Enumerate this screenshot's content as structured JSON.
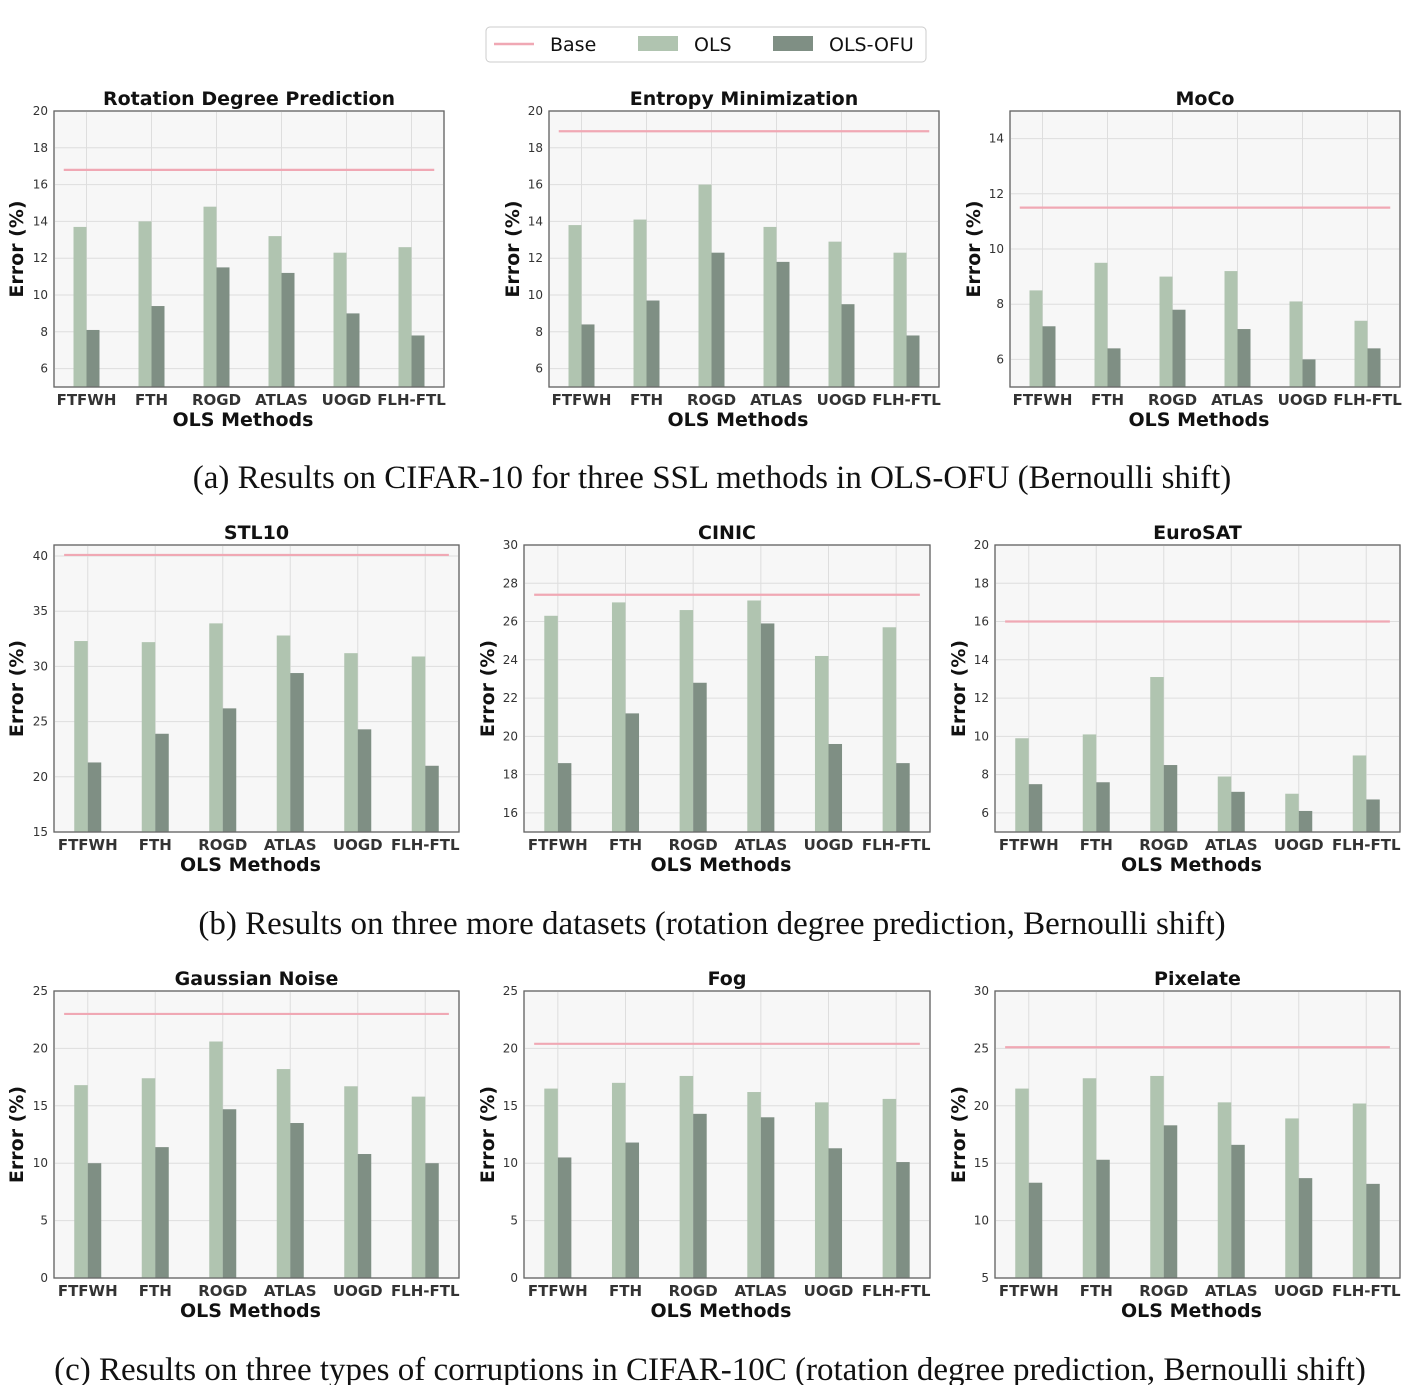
{
  "legend": [
    {
      "name": "Base",
      "color": "#f0a8b4",
      "kind": "line"
    },
    {
      "name": "OLS",
      "color": "#b0c4b0",
      "kind": "bar"
    },
    {
      "name": "OLS-OFU",
      "color": "#7f8f84",
      "kind": "bar"
    }
  ],
  "captions": [
    "(a) Results on CIFAR-10 for three SSL methods in OLS-OFU (Bernoulli shift)",
    "(b) Results on three more datasets (rotation degree prediction, Bernoulli shift)",
    "(c) Results on three types of corruptions in CIFAR-10C (rotation degree prediction, Bernoulli shift)"
  ],
  "chart_data": [
    {
      "type": "bar",
      "title": "Rotation Degree Prediction",
      "xlabel": "OLS Methods",
      "ylabel": "Error (%)",
      "categories": [
        "FTFWH",
        "FTH",
        "ROGD",
        "ATLAS",
        "UOGD",
        "FLH-FTL"
      ],
      "ylim": [
        5,
        20
      ],
      "yticks": [
        6,
        8,
        10,
        12,
        14,
        16,
        18,
        20
      ],
      "base": 16.8,
      "series": [
        {
          "name": "OLS",
          "values": [
            13.7,
            14.0,
            14.8,
            13.2,
            12.3,
            12.6
          ]
        },
        {
          "name": "OLS-OFU",
          "values": [
            8.1,
            9.4,
            11.5,
            11.2,
            9.0,
            7.8
          ]
        }
      ],
      "grid": true
    },
    {
      "type": "bar",
      "title": "Entropy Minimization",
      "xlabel": "OLS Methods",
      "ylabel": "Error (%)",
      "categories": [
        "FTFWH",
        "FTH",
        "ROGD",
        "ATLAS",
        "UOGD",
        "FLH-FTL"
      ],
      "ylim": [
        5,
        20
      ],
      "yticks": [
        6,
        8,
        10,
        12,
        14,
        16,
        18,
        20
      ],
      "base": 18.9,
      "series": [
        {
          "name": "OLS",
          "values": [
            13.8,
            14.1,
            16.0,
            13.7,
            12.9,
            12.3
          ]
        },
        {
          "name": "OLS-OFU",
          "values": [
            8.4,
            9.7,
            12.3,
            11.8,
            9.5,
            7.8
          ]
        }
      ],
      "grid": true
    },
    {
      "type": "bar",
      "title": "MoCo",
      "xlabel": "OLS Methods",
      "ylabel": "Error (%)",
      "categories": [
        "FTFWH",
        "FTH",
        "ROGD",
        "ATLAS",
        "UOGD",
        "FLH-FTL"
      ],
      "ylim": [
        5,
        15
      ],
      "yticks": [
        6,
        8,
        10,
        12,
        14
      ],
      "base": 11.5,
      "series": [
        {
          "name": "OLS",
          "values": [
            8.5,
            9.5,
            9.0,
            9.2,
            8.1,
            7.4
          ]
        },
        {
          "name": "OLS-OFU",
          "values": [
            7.2,
            6.4,
            7.8,
            7.1,
            6.0,
            6.4
          ]
        }
      ],
      "grid": true
    },
    {
      "type": "bar",
      "title": "STL10",
      "xlabel": "OLS Methods",
      "ylabel": "Error (%)",
      "categories": [
        "FTFWH",
        "FTH",
        "ROGD",
        "ATLAS",
        "UOGD",
        "FLH-FTL"
      ],
      "ylim": [
        15,
        41
      ],
      "yticks": [
        15,
        20,
        25,
        30,
        35,
        40
      ],
      "base": 40.1,
      "series": [
        {
          "name": "OLS",
          "values": [
            32.3,
            32.2,
            33.9,
            32.8,
            31.2,
            30.9
          ]
        },
        {
          "name": "OLS-OFU",
          "values": [
            21.3,
            23.9,
            26.2,
            29.4,
            24.3,
            21.0
          ]
        }
      ],
      "grid": true
    },
    {
      "type": "bar",
      "title": "CINIC",
      "xlabel": "OLS Methods",
      "ylabel": "Error (%)",
      "categories": [
        "FTFWH",
        "FTH",
        "ROGD",
        "ATLAS",
        "UOGD",
        "FLH-FTL"
      ],
      "ylim": [
        15,
        30
      ],
      "yticks": [
        16,
        18,
        20,
        22,
        24,
        26,
        28,
        30
      ],
      "base": 27.4,
      "series": [
        {
          "name": "OLS",
          "values": [
            26.3,
            27.0,
            26.6,
            27.1,
            24.2,
            25.7
          ]
        },
        {
          "name": "OLS-OFU",
          "values": [
            18.6,
            21.2,
            22.8,
            25.9,
            19.6,
            18.6
          ]
        }
      ],
      "grid": true
    },
    {
      "type": "bar",
      "title": "EuroSAT",
      "xlabel": "OLS Methods",
      "ylabel": "Error (%)",
      "categories": [
        "FTFWH",
        "FTH",
        "ROGD",
        "ATLAS",
        "UOGD",
        "FLH-FTL"
      ],
      "ylim": [
        5,
        20
      ],
      "yticks": [
        6,
        8,
        10,
        12,
        14,
        16,
        18,
        20
      ],
      "base": 16.0,
      "series": [
        {
          "name": "OLS",
          "values": [
            9.9,
            10.1,
            13.1,
            7.9,
            7.0,
            9.0
          ]
        },
        {
          "name": "OLS-OFU",
          "values": [
            7.5,
            7.6,
            8.5,
            7.1,
            6.1,
            6.7
          ]
        }
      ],
      "grid": true
    },
    {
      "type": "bar",
      "title": "Gaussian Noise",
      "xlabel": "OLS Methods",
      "ylabel": "Error (%)",
      "categories": [
        "FTFWH",
        "FTH",
        "ROGD",
        "ATLAS",
        "UOGD",
        "FLH-FTL"
      ],
      "ylim": [
        0,
        25
      ],
      "yticks": [
        0,
        5,
        10,
        15,
        20,
        25
      ],
      "base": 23.0,
      "series": [
        {
          "name": "OLS",
          "values": [
            16.8,
            17.4,
            20.6,
            18.2,
            16.7,
            15.8
          ]
        },
        {
          "name": "OLS-OFU",
          "values": [
            10.0,
            11.4,
            14.7,
            13.5,
            10.8,
            10.0
          ]
        }
      ],
      "grid": true
    },
    {
      "type": "bar",
      "title": "Fog",
      "xlabel": "OLS Methods",
      "ylabel": "Error (%)",
      "categories": [
        "FTFWH",
        "FTH",
        "ROGD",
        "ATLAS",
        "UOGD",
        "FLH-FTL"
      ],
      "ylim": [
        0,
        25
      ],
      "yticks": [
        0,
        5,
        10,
        15,
        20,
        25
      ],
      "base": 20.4,
      "series": [
        {
          "name": "OLS",
          "values": [
            16.5,
            17.0,
            17.6,
            16.2,
            15.3,
            15.6
          ]
        },
        {
          "name": "OLS-OFU",
          "values": [
            10.5,
            11.8,
            14.3,
            14.0,
            11.3,
            10.1
          ]
        }
      ],
      "grid": true
    },
    {
      "type": "bar",
      "title": "Pixelate",
      "xlabel": "OLS Methods",
      "ylabel": "Error (%)",
      "categories": [
        "FTFWH",
        "FTH",
        "ROGD",
        "ATLAS",
        "UOGD",
        "FLH-FTL"
      ],
      "ylim": [
        5,
        30
      ],
      "yticks": [
        5,
        10,
        15,
        20,
        25,
        30
      ],
      "base": 25.1,
      "series": [
        {
          "name": "OLS",
          "values": [
            21.5,
            22.4,
            22.6,
            20.3,
            18.9,
            20.2
          ]
        },
        {
          "name": "OLS-OFU",
          "values": [
            13.3,
            15.3,
            18.3,
            16.6,
            13.7,
            13.2
          ]
        }
      ],
      "grid": true
    }
  ]
}
